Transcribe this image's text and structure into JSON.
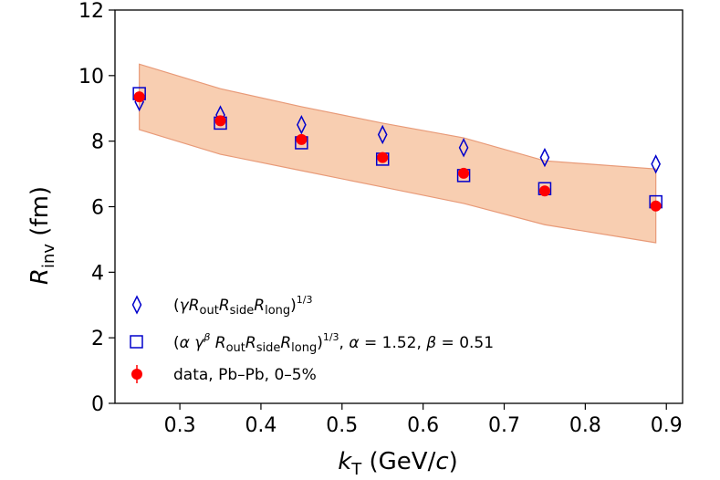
{
  "chart_data": {
    "type": "scatter",
    "x": [
      0.25,
      0.35,
      0.45,
      0.55,
      0.65,
      0.75,
      0.887
    ],
    "series": [
      {
        "name": "(γ R_out R_side R_long)^1/3",
        "marker": "diamond",
        "color": "#0000cc",
        "values": [
          9.2,
          8.8,
          8.5,
          8.2,
          7.8,
          7.5,
          7.3
        ]
      },
      {
        "name": "(α γ^β R_out R_side R_long)^1/3, α = 1.52, β = 0.51",
        "marker": "square",
        "color": "#0000cc",
        "values": [
          9.45,
          8.55,
          7.95,
          7.45,
          6.95,
          6.55,
          6.15
        ]
      },
      {
        "name": "data, Pb–Pb, 0–5%",
        "marker": "circle",
        "color": "#ff0000",
        "values": [
          9.35,
          8.62,
          8.05,
          7.5,
          7.02,
          6.48,
          6.02
        ],
        "errors": [
          0.1,
          0.1,
          0.1,
          0.1,
          0.1,
          0.1,
          0.1
        ]
      }
    ],
    "band": {
      "color": "#f7c6a3",
      "edge_color": "#e89a78",
      "x": [
        0.25,
        0.35,
        0.45,
        0.55,
        0.65,
        0.75,
        0.887
      ],
      "upper": [
        10.35,
        9.6,
        9.05,
        8.55,
        8.1,
        7.4,
        7.15
      ],
      "lower": [
        8.35,
        7.6,
        7.1,
        6.6,
        6.1,
        5.45,
        4.9
      ]
    },
    "xlim": [
      0.22,
      0.92
    ],
    "ylim": [
      0,
      12
    ],
    "xticks": [
      "0.3",
      "0.4",
      "0.5",
      "0.6",
      "0.7",
      "0.8",
      "0.9"
    ],
    "yticks": [
      "0",
      "2",
      "4",
      "6",
      "8",
      "10",
      "12"
    ],
    "xlabel": {
      "main": "k",
      "sub": "T",
      "rest": " (GeV/",
      "c": "c",
      "close": ")"
    },
    "ylabel": {
      "main": "R",
      "sub": "inv",
      "rest": " (fm)"
    },
    "legend_position": "lower-left",
    "legend": [
      {
        "marker": "diamond",
        "text": "(γR_out R_side R_long)^1/3"
      },
      {
        "marker": "square",
        "text": "(α γ^β R_out R_side R_long)^1/3, α = 1.52, β = 0.51"
      },
      {
        "marker": "circle",
        "text": "data, Pb–Pb, 0–5%"
      }
    ],
    "grid": false
  }
}
